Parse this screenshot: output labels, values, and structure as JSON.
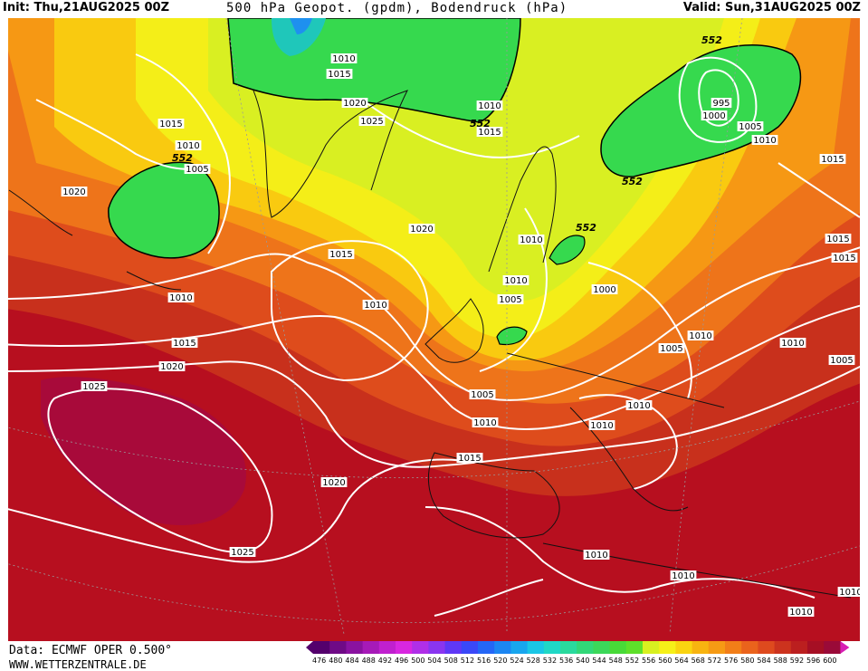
{
  "header": {
    "init": "Init: Thu,21AUG2025 00Z",
    "title": "500 hPa Geopot. (gpdm), Bodendruck (hPa)",
    "valid": "Valid: Sun,31AUG2025 00Z"
  },
  "footer": {
    "source": "Data: ECMWF OPER 0.500°",
    "website": "WWW.WETTERZENTRALE.DE"
  },
  "colorbar": {
    "unit": "gpdm",
    "ticks": [
      "476",
      "480",
      "484",
      "488",
      "492",
      "496",
      "500",
      "504",
      "508",
      "512",
      "516",
      "520",
      "524",
      "528",
      "532",
      "536",
      "540",
      "544",
      "548",
      "552",
      "556",
      "560",
      "564",
      "568",
      "572",
      "576",
      "580",
      "584",
      "588",
      "592",
      "596",
      "600"
    ],
    "colors": [
      "#54006c",
      "#6f0a86",
      "#8a12a0",
      "#a61ab8",
      "#c020cf",
      "#d827e0",
      "#b02fe8",
      "#8a35f0",
      "#5f38f6",
      "#3a48f8",
      "#2466f6",
      "#1c86f2",
      "#18a6ee",
      "#1ac6e6",
      "#20d8c6",
      "#2ada9e",
      "#32d878",
      "#3cd85a",
      "#48da38",
      "#5ee02a",
      "#d8f020",
      "#f6f018",
      "#fad410",
      "#f8b410",
      "#f69a14",
      "#f27e18",
      "#ea631c",
      "#de4a1e",
      "#cc331e",
      "#bb1f1f",
      "#a60f24",
      "#9a0a38"
    ]
  },
  "map": {
    "geopotential_labels": [
      "552",
      "552",
      "552",
      "552",
      "552"
    ],
    "pressure_labels": [
      "1010",
      "1015",
      "1020",
      "1025",
      "1010",
      "1015",
      "995",
      "1000",
      "1005",
      "1010",
      "1015",
      "1015",
      "1015",
      "1010",
      "1005",
      "1020",
      "1015",
      "1020",
      "1010",
      "1010",
      "1015",
      "1015",
      "1010",
      "1005",
      "1000",
      "1005",
      "1010",
      "1005",
      "1005",
      "1010",
      "1010",
      "1010",
      "1015",
      "1025",
      "1020",
      "1010",
      "1010",
      "1025",
      "1010",
      "1010",
      "1010",
      "1010",
      "1020",
      "1015",
      "1005"
    ]
  }
}
